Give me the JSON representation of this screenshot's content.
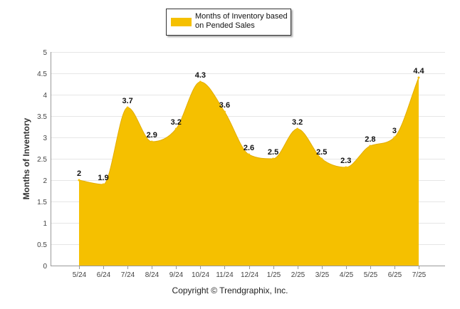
{
  "legend": {
    "label": "Months of Inventory based on Pended Sales",
    "color": "#F5C000"
  },
  "footer": {
    "copyright": "Copyright © Trendgraphix, Inc."
  },
  "chart_data": {
    "type": "area",
    "title": "",
    "xlabel": "",
    "ylabel": "Months of Inventory",
    "categories": [
      "5/24",
      "6/24",
      "7/24",
      "8/24",
      "9/24",
      "10/24",
      "11/24",
      "12/24",
      "1/25",
      "2/25",
      "3/25",
      "4/25",
      "5/25",
      "6/25",
      "7/25"
    ],
    "series": [
      {
        "name": "Months of Inventory based on Pended Sales",
        "color": "#F5C000",
        "values": [
          2,
          1.9,
          3.7,
          2.9,
          3.2,
          4.3,
          3.6,
          2.6,
          2.5,
          3.2,
          2.5,
          2.3,
          2.8,
          3,
          4.4
        ],
        "labels": [
          "2",
          "1.9",
          "3.7",
          "2.9",
          "3.2",
          "4.3",
          "3.6",
          "2.6",
          "2.5",
          "3.2",
          "2.5",
          "2.3",
          "2.8",
          "3",
          "4.4"
        ]
      }
    ],
    "yticks": [
      0,
      0.5,
      1,
      1.5,
      2,
      2.5,
      3,
      3.5,
      4,
      4.5,
      5
    ],
    "ytick_labels": [
      "0",
      "0.5",
      "1",
      "1.5",
      "2",
      "2.5",
      "3",
      "3.5",
      "4",
      "4.5",
      "5"
    ],
    "ylim": [
      0,
      5
    ],
    "grid": true,
    "legend_position": "top-center"
  }
}
